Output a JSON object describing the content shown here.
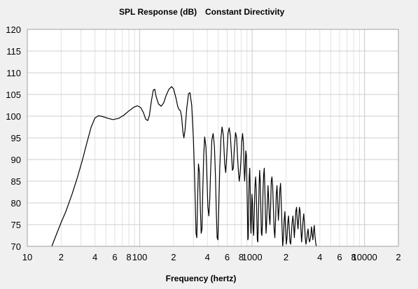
{
  "chart_data": {
    "type": "line",
    "title": "SPL Response (dB)",
    "subtitle": "Constant Directivity",
    "xlabel": "Frequency (hertz)",
    "ylabel": "",
    "x_scale": "log",
    "xlim": [
      10,
      20000
    ],
    "ylim": [
      70,
      120
    ],
    "grid": true,
    "y_ticks": [
      120,
      115,
      110,
      105,
      100,
      95,
      90,
      85,
      80,
      75,
      70
    ],
    "x_ticks": [
      {
        "value": 10,
        "label": "10"
      },
      {
        "value": 20,
        "label": "2"
      },
      {
        "value": 40,
        "label": "4"
      },
      {
        "value": 60,
        "label": "6"
      },
      {
        "value": 80,
        "label": "8"
      },
      {
        "value": 100,
        "label": "100"
      },
      {
        "value": 200,
        "label": "2"
      },
      {
        "value": 400,
        "label": "4"
      },
      {
        "value": 600,
        "label": "6"
      },
      {
        "value": 800,
        "label": "8"
      },
      {
        "value": 1000,
        "label": "1000"
      },
      {
        "value": 2000,
        "label": "2"
      },
      {
        "value": 4000,
        "label": "4"
      },
      {
        "value": 6000,
        "label": "6"
      },
      {
        "value": 8000,
        "label": "8"
      },
      {
        "value": 10000,
        "label": "10000"
      },
      {
        "value": 20000,
        "label": "2"
      }
    ],
    "series": [
      {
        "color": "#000000",
        "points": [
          [
            16.5,
            70
          ],
          [
            18,
            72.5
          ],
          [
            20,
            75.5
          ],
          [
            22,
            78
          ],
          [
            25,
            82
          ],
          [
            28,
            86
          ],
          [
            31,
            90
          ],
          [
            34,
            94
          ],
          [
            37,
            97.5
          ],
          [
            40,
            99.6
          ],
          [
            43,
            100.1
          ],
          [
            47,
            99.9
          ],
          [
            52,
            99.5
          ],
          [
            58,
            99.2
          ],
          [
            65,
            99.5
          ],
          [
            72,
            100.2
          ],
          [
            80,
            101.2
          ],
          [
            88,
            102
          ],
          [
            95,
            102.4
          ],
          [
            102,
            102
          ],
          [
            108,
            100.8
          ],
          [
            113,
            99.3
          ],
          [
            118,
            99
          ],
          [
            122,
            100.2
          ],
          [
            127,
            103.5
          ],
          [
            132,
            106
          ],
          [
            136,
            106.2
          ],
          [
            140,
            104.5
          ],
          [
            147,
            102.8
          ],
          [
            155,
            102.3
          ],
          [
            163,
            103
          ],
          [
            172,
            104.8
          ],
          [
            182,
            106.2
          ],
          [
            192,
            106.8
          ],
          [
            200,
            106.3
          ],
          [
            210,
            104.2
          ],
          [
            218,
            102.2
          ],
          [
            224,
            101.5
          ],
          [
            230,
            101.3
          ],
          [
            236,
            99.8
          ],
          [
            242,
            96.5
          ],
          [
            247,
            95
          ],
          [
            253,
            96.8
          ],
          [
            262,
            101.8
          ],
          [
            272,
            105.2
          ],
          [
            280,
            105.4
          ],
          [
            290,
            102.5
          ],
          [
            300,
            95
          ],
          [
            307,
            87
          ],
          [
            312,
            80
          ],
          [
            317,
            73
          ],
          [
            322,
            72
          ],
          [
            327,
            80
          ],
          [
            333,
            89
          ],
          [
            340,
            87
          ],
          [
            346,
            79
          ],
          [
            352,
            73
          ],
          [
            358,
            74
          ],
          [
            364,
            83
          ],
          [
            371,
            91
          ],
          [
            378,
            95.2
          ],
          [
            388,
            93
          ],
          [
            396,
            86
          ],
          [
            404,
            79
          ],
          [
            412,
            77
          ],
          [
            420,
            81
          ],
          [
            428,
            88
          ],
          [
            438,
            94.5
          ],
          [
            450,
            96
          ],
          [
            462,
            93
          ],
          [
            472,
            86
          ],
          [
            480,
            78
          ],
          [
            488,
            72
          ],
          [
            496,
            71.5
          ],
          [
            505,
            79
          ],
          [
            515,
            88
          ],
          [
            528,
            95
          ],
          [
            540,
            97.5
          ],
          [
            555,
            95.5
          ],
          [
            570,
            89
          ],
          [
            582,
            87
          ],
          [
            595,
            91
          ],
          [
            610,
            96
          ],
          [
            625,
            97.3
          ],
          [
            640,
            95.5
          ],
          [
            656,
            91
          ],
          [
            668,
            87.5
          ],
          [
            680,
            88
          ],
          [
            696,
            93
          ],
          [
            712,
            96.2
          ],
          [
            728,
            95
          ],
          [
            742,
            90.5
          ],
          [
            756,
            87
          ],
          [
            768,
            85
          ],
          [
            780,
            86.5
          ],
          [
            794,
            89.5
          ],
          [
            808,
            94
          ],
          [
            822,
            96
          ],
          [
            836,
            94
          ],
          [
            848,
            88
          ],
          [
            858,
            85
          ],
          [
            868,
            88
          ],
          [
            878,
            92
          ],
          [
            888,
            91
          ],
          [
            898,
            85
          ],
          [
            908,
            78
          ],
          [
            916,
            71.5
          ],
          [
            924,
            72
          ],
          [
            932,
            80
          ],
          [
            942,
            86
          ],
          [
            952,
            88
          ],
          [
            960,
            84
          ],
          [
            968,
            76
          ],
          [
            976,
            73
          ],
          [
            986,
            77
          ],
          [
            996,
            82
          ],
          [
            1008,
            80
          ],
          [
            1020,
            74
          ],
          [
            1032,
            72.5
          ],
          [
            1046,
            78
          ],
          [
            1060,
            84
          ],
          [
            1074,
            86
          ],
          [
            1088,
            83
          ],
          [
            1100,
            77
          ],
          [
            1112,
            71.5
          ],
          [
            1124,
            71
          ],
          [
            1138,
            77
          ],
          [
            1152,
            83.5
          ],
          [
            1166,
            87.5
          ],
          [
            1180,
            85
          ],
          [
            1194,
            79
          ],
          [
            1208,
            73
          ],
          [
            1222,
            72.5
          ],
          [
            1236,
            76
          ],
          [
            1250,
            83
          ],
          [
            1266,
            86.5
          ],
          [
            1282,
            88
          ],
          [
            1298,
            83
          ],
          [
            1314,
            77
          ],
          [
            1330,
            73
          ],
          [
            1348,
            76
          ],
          [
            1366,
            80
          ],
          [
            1384,
            84
          ],
          [
            1402,
            81
          ],
          [
            1420,
            77
          ],
          [
            1440,
            75
          ],
          [
            1460,
            79
          ],
          [
            1480,
            85
          ],
          [
            1500,
            86
          ],
          [
            1522,
            84
          ],
          [
            1545,
            79
          ],
          [
            1568,
            74
          ],
          [
            1592,
            72
          ],
          [
            1616,
            76
          ],
          [
            1640,
            82
          ],
          [
            1664,
            84
          ],
          [
            1688,
            80
          ],
          [
            1712,
            76
          ],
          [
            1738,
            79
          ],
          [
            1764,
            83
          ],
          [
            1790,
            84.5
          ],
          [
            1816,
            80
          ],
          [
            1842,
            75
          ],
          [
            1870,
            70
          ],
          [
            1898,
            72
          ],
          [
            1926,
            76
          ],
          [
            1955,
            78
          ],
          [
            1984,
            74
          ],
          [
            2014,
            70.5
          ],
          [
            2044,
            72
          ],
          [
            2075,
            75.5
          ],
          [
            2106,
            77
          ],
          [
            2138,
            74
          ],
          [
            2170,
            71
          ],
          [
            2203,
            70.5
          ],
          [
            2236,
            73
          ],
          [
            2270,
            75.5
          ],
          [
            2304,
            77
          ],
          [
            2339,
            75
          ],
          [
            2374,
            72
          ],
          [
            2410,
            75
          ],
          [
            2446,
            78
          ],
          [
            2483,
            79
          ],
          [
            2520,
            76
          ],
          [
            2558,
            74
          ],
          [
            2596,
            76.5
          ],
          [
            2635,
            79
          ],
          [
            2674,
            78
          ],
          [
            2714,
            74
          ],
          [
            2754,
            71
          ],
          [
            2795,
            73.5
          ],
          [
            2837,
            76
          ],
          [
            2880,
            77.5
          ],
          [
            2923,
            75
          ],
          [
            2966,
            72
          ],
          [
            3010,
            70.5
          ],
          [
            3055,
            71.5
          ],
          [
            3100,
            73
          ],
          [
            3145,
            74
          ],
          [
            3190,
            72
          ],
          [
            3235,
            71
          ],
          [
            3280,
            71.5
          ],
          [
            3325,
            72.5
          ],
          [
            3370,
            74.5
          ],
          [
            3420,
            73
          ],
          [
            3470,
            71.5
          ],
          [
            3520,
            73.5
          ],
          [
            3570,
            74.8
          ],
          [
            3620,
            72.5
          ],
          [
            3670,
            71
          ],
          [
            3720,
            70
          ]
        ]
      }
    ]
  }
}
